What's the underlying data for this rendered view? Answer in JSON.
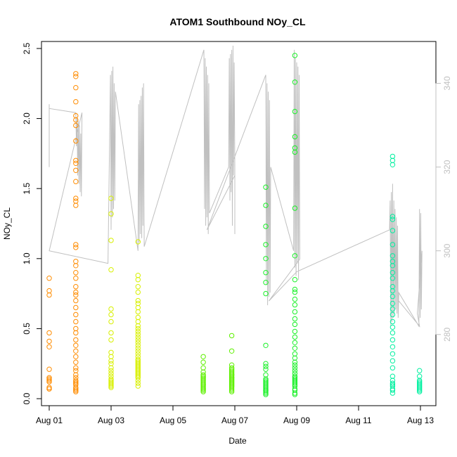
{
  "chart_data": {
    "type": "scatter",
    "title": "ATOM1 Southbound NOy_CL",
    "xlabel": "Date",
    "ylabel": "NOy_CL",
    "x_ticks": [
      "Aug 01",
      "Aug 03",
      "Aug 05",
      "Aug 07",
      "Aug 09",
      "Aug 11",
      "Aug 13"
    ],
    "xlim_days": [
      0.75,
      13.5
    ],
    "ylim": [
      -0.05,
      2.55
    ],
    "y_ticks": [
      "0.0",
      "0.5",
      "1.0",
      "1.5",
      "2.0",
      "2.5"
    ],
    "right_axis": {
      "ylim": [
        263,
        350
      ],
      "ticks": [
        "280",
        "300",
        "320",
        "340"
      ],
      "color": "#c0c0c0"
    },
    "grid": false,
    "series": [
      {
        "color": "#ff8c00",
        "x": [
          1.0,
          1.0,
          1.0,
          1.0,
          1.0,
          1.0,
          1.0,
          1.0,
          1.0,
          1.0,
          1.0,
          1.0,
          1.0,
          1.0,
          1.86,
          1.86,
          1.86,
          1.86,
          1.86,
          1.86,
          1.86,
          1.86,
          1.86,
          1.86,
          1.86,
          1.86,
          1.86,
          1.86,
          1.86,
          1.86,
          1.86,
          1.86,
          1.86,
          1.86,
          1.86,
          1.86,
          1.86,
          1.86,
          1.86,
          1.86,
          1.86,
          1.86,
          1.86,
          1.86,
          1.86,
          1.86,
          1.86,
          1.86,
          1.86,
          1.86,
          1.86,
          1.86,
          1.86,
          1.86,
          1.86,
          1.86,
          1.86,
          1.86,
          1.86,
          1.86,
          1.86
        ],
        "y": [
          0.86,
          0.77,
          0.74,
          0.47,
          0.41,
          0.37,
          0.21,
          0.15,
          0.13,
          0.12,
          0.08,
          0.07,
          0.07,
          0.14,
          2.32,
          2.3,
          2.22,
          2.12,
          2.02,
          1.99,
          1.95,
          1.84,
          1.7,
          1.68,
          1.63,
          1.55,
          1.43,
          1.41,
          1.38,
          1.1,
          1.08,
          0.98,
          0.95,
          0.9,
          0.86,
          0.8,
          0.76,
          0.74,
          0.7,
          0.65,
          0.6,
          0.55,
          0.5,
          0.47,
          0.42,
          0.38,
          0.34,
          0.3,
          0.26,
          0.22,
          0.2,
          0.17,
          0.15,
          0.13,
          0.12,
          0.11,
          0.1,
          0.08,
          0.07,
          0.06,
          0.05
        ]
      },
      {
        "color": "#d8f000",
        "x": [
          3.0,
          3.0,
          3.0,
          3.0,
          3.0,
          3.0,
          3.0,
          3.0,
          3.0,
          3.0,
          3.0,
          3.0,
          3.0,
          3.0,
          3.0,
          3.0,
          3.0,
          3.0,
          3.0,
          3.0,
          3.0,
          3.0,
          3.0,
          3.0,
          3.87,
          3.87,
          3.87,
          3.87,
          3.87,
          3.87,
          3.87,
          3.87,
          3.87,
          3.87,
          3.87,
          3.87,
          3.87,
          3.87,
          3.87,
          3.87,
          3.87,
          3.87,
          3.87,
          3.87,
          3.87,
          3.87,
          3.87,
          3.87,
          3.87,
          3.87,
          3.87,
          3.87,
          3.87,
          3.87,
          3.87,
          3.87,
          3.87,
          3.87,
          3.87,
          3.87,
          3.87,
          3.87,
          3.87,
          3.87
        ],
        "y": [
          1.43,
          1.32,
          1.13,
          0.92,
          0.64,
          0.6,
          0.55,
          0.47,
          0.42,
          0.33,
          0.3,
          0.27,
          0.25,
          0.22,
          0.2,
          0.18,
          0.16,
          0.14,
          0.13,
          0.12,
          0.11,
          0.1,
          0.09,
          0.08,
          1.12,
          0.88,
          0.85,
          0.8,
          0.76,
          0.7,
          0.68,
          0.65,
          0.62,
          0.58,
          0.55,
          0.52,
          0.5,
          0.48,
          0.46,
          0.44,
          0.42,
          0.4,
          0.38,
          0.36,
          0.34,
          0.32,
          0.3,
          0.28,
          0.27,
          0.26,
          0.25,
          0.24,
          0.23,
          0.22,
          0.21,
          0.2,
          0.19,
          0.18,
          0.17,
          0.16,
          0.15,
          0.13,
          0.11,
          0.09
        ]
      },
      {
        "color": "#5ef000",
        "x": [
          5.98,
          5.98,
          5.98,
          5.98,
          5.98,
          5.98,
          5.98,
          5.98,
          5.98,
          5.98,
          5.98,
          5.98,
          5.98,
          5.98,
          5.98,
          5.98,
          5.98,
          5.98,
          5.98,
          6.9,
          6.9,
          6.9,
          6.9,
          6.9,
          6.9,
          6.9,
          6.9,
          6.9,
          6.9,
          6.9,
          6.9,
          6.9,
          6.9,
          6.9,
          6.9,
          6.9,
          6.9,
          6.9,
          6.9,
          6.9,
          6.9,
          6.9,
          6.9,
          6.9,
          6.9,
          6.9,
          6.9,
          6.9
        ],
        "y": [
          0.3,
          0.26,
          0.22,
          0.19,
          0.17,
          0.16,
          0.15,
          0.14,
          0.13,
          0.12,
          0.11,
          0.1,
          0.1,
          0.09,
          0.08,
          0.07,
          0.07,
          0.06,
          0.05,
          0.45,
          0.34,
          0.24,
          0.22,
          0.21,
          0.2,
          0.19,
          0.18,
          0.17,
          0.17,
          0.16,
          0.15,
          0.15,
          0.14,
          0.14,
          0.13,
          0.13,
          0.12,
          0.12,
          0.11,
          0.11,
          0.1,
          0.1,
          0.09,
          0.09,
          0.08,
          0.07,
          0.06,
          0.05
        ]
      },
      {
        "color": "#1af028",
        "x": [
          8.0,
          8.0,
          8.0,
          8.0,
          8.0,
          8.0,
          8.0,
          8.0,
          8.0,
          8.0,
          8.0,
          8.0,
          8.0,
          8.0,
          8.0,
          8.0,
          8.0,
          8.0,
          8.0,
          8.0,
          8.0,
          8.0,
          8.0,
          8.0,
          8.0,
          8.0,
          8.94,
          8.94,
          8.94,
          8.94,
          8.94,
          8.94,
          8.94,
          8.94,
          8.94,
          8.94,
          8.94,
          8.94,
          8.94,
          8.94,
          8.94,
          8.94,
          8.94,
          8.94,
          8.94,
          8.94,
          8.94,
          8.94,
          8.94,
          8.94,
          8.94,
          8.94,
          8.94,
          8.94,
          8.94,
          8.94,
          8.94,
          8.94,
          8.94,
          8.94,
          8.94,
          8.94,
          8.94,
          8.94,
          8.94
        ],
        "y": [
          1.51,
          1.38,
          1.23,
          1.1,
          1.0,
          0.9,
          0.83,
          0.75,
          0.38,
          0.25,
          0.23,
          0.21,
          0.17,
          0.14,
          0.13,
          0.12,
          0.11,
          0.1,
          0.09,
          0.08,
          0.07,
          0.06,
          0.06,
          0.05,
          0.04,
          0.03,
          2.45,
          2.26,
          2.05,
          1.87,
          1.79,
          1.76,
          1.36,
          1.02,
          0.85,
          0.78,
          0.76,
          0.71,
          0.67,
          0.62,
          0.57,
          0.53,
          0.48,
          0.44,
          0.4,
          0.36,
          0.32,
          0.29,
          0.26,
          0.24,
          0.22,
          0.2,
          0.18,
          0.16,
          0.15,
          0.14,
          0.13,
          0.12,
          0.11,
          0.1,
          0.09,
          0.07,
          0.06,
          0.04,
          0.03
        ]
      },
      {
        "color": "#00f0a0",
        "x": [
          12.1,
          12.1,
          12.1,
          12.1,
          12.1,
          12.1,
          12.1,
          12.1,
          12.1,
          12.1,
          12.1,
          12.1,
          12.1,
          12.1,
          12.1,
          12.1,
          12.1,
          12.1,
          12.1,
          12.1,
          12.1,
          12.1,
          12.1,
          12.1,
          12.1,
          12.1,
          12.1,
          12.1,
          12.1,
          12.1,
          12.1,
          12.1,
          12.1,
          12.1,
          12.97,
          12.97,
          12.97,
          12.97,
          12.97,
          12.97,
          12.97,
          12.97,
          12.97,
          12.97,
          12.97
        ],
        "y": [
          1.73,
          1.7,
          1.67,
          1.3,
          1.28,
          1.2,
          1.1,
          1.02,
          0.98,
          0.95,
          0.9,
          0.86,
          0.8,
          0.77,
          0.73,
          0.68,
          0.64,
          0.6,
          0.55,
          0.51,
          0.47,
          0.42,
          0.37,
          0.32,
          0.27,
          0.22,
          0.16,
          0.13,
          0.11,
          0.1,
          0.09,
          0.07,
          0.06,
          0.04,
          0.2,
          0.16,
          0.13,
          0.12,
          0.11,
          0.1,
          0.09,
          0.08,
          0.07,
          0.06,
          0.05
        ]
      }
    ],
    "secondary_line": {
      "color": "#c0c0c0",
      "x": [
        1.0,
        1.0,
        1.0,
        1.86,
        1.88,
        1.9,
        1.92,
        1.94,
        1.96,
        1.98,
        2.0,
        2.02,
        2.04,
        2.06,
        1.0,
        2.9,
        2.98,
        3.0,
        3.02,
        3.04,
        3.06,
        3.08,
        3.1,
        3.12,
        3.14,
        3.87,
        3.89,
        3.91,
        3.93,
        3.95,
        3.97,
        3.99,
        4.01,
        4.03,
        4.05,
        4.07,
        6.0,
        6.02,
        6.04,
        6.06,
        6.08,
        6.1,
        6.12,
        6.14,
        6.16,
        6.18,
        6.8,
        6.82,
        6.84,
        6.86,
        6.88,
        6.9,
        6.92,
        6.94,
        6.96,
        6.98,
        7.0,
        7.0,
        7.0,
        6.1,
        8.0,
        8.02,
        8.04,
        8.06,
        8.08,
        8.1,
        8.12,
        8.14,
        8.16,
        8.9,
        8.92,
        8.94,
        8.96,
        8.98,
        9.0,
        9.02,
        9.04,
        9.06,
        9.08,
        9.1,
        8.1,
        9.0,
        12.0,
        12.02,
        12.04,
        12.06,
        12.08,
        12.1,
        12.12,
        12.14,
        12.16,
        12.18,
        12.2,
        12.22,
        12.24,
        12.26,
        12.28,
        12.3,
        12.95,
        12.97,
        12.99,
        13.01,
        13.03,
        13.05,
        12.9,
        12.97,
        12.3
      ],
      "y": [
        335,
        320,
        334,
        333,
        325,
        332,
        318,
        331,
        316,
        330,
        314,
        328,
        313,
        333,
        300,
        297,
        342,
        305,
        343,
        308,
        344,
        310,
        340,
        312,
        338,
        300,
        335,
        302,
        336,
        304,
        337,
        303,
        339,
        306,
        340,
        301,
        348,
        310,
        346,
        306,
        344,
        308,
        342,
        304,
        340,
        309,
        320,
        346,
        312,
        347,
        314,
        348,
        306,
        349,
        318,
        345,
        320,
        304,
        318,
        305,
        342,
        292,
        340,
        287,
        338,
        289,
        336,
        290,
        320,
        300,
        348,
        296,
        346,
        294,
        345,
        297,
        344,
        293,
        342,
        298,
        288,
        295,
        305,
        312,
        282,
        314,
        283,
        316,
        284,
        312,
        285,
        310,
        286,
        308,
        285,
        306,
        284,
        290,
        282,
        310,
        284,
        309,
        286,
        300,
        285,
        282,
        288
      ]
    }
  }
}
